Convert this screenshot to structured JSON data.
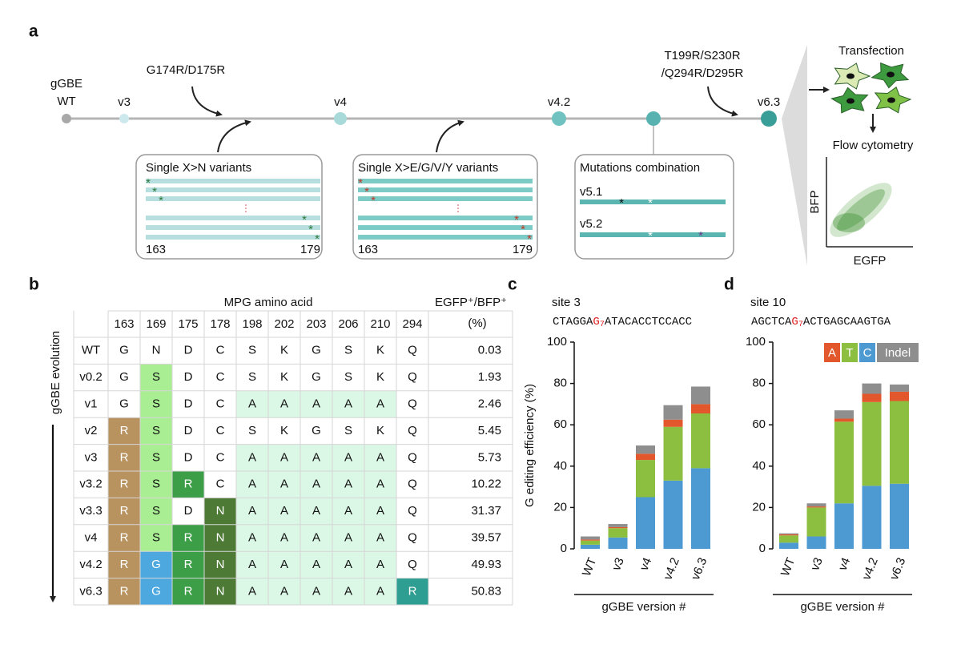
{
  "panel_labels": [
    "a",
    "b",
    "c",
    "d"
  ],
  "panel_a": {
    "origin": [
      "gGBE",
      "WT"
    ],
    "versions": [
      "v3",
      "v4",
      "v4.2",
      "v6.3"
    ],
    "mutations_1": "G174R/D175R",
    "mutations_2": [
      "T199R/S230R",
      "/Q294R/D295R"
    ],
    "box_1": {
      "title": "Single X>N variants",
      "start": "163",
      "end": "179"
    },
    "box_2": {
      "title": "Single X>E/G/V/Y variants",
      "start": "163",
      "end": "179"
    },
    "box_3": {
      "title": "Mutations combination",
      "variants": [
        "v5.1",
        "v5.2"
      ]
    },
    "transfection": "Transfection",
    "flow": "Flow cytometry",
    "flow_y": "BFP",
    "flow_x": "EGFP"
  },
  "table": {
    "group_header": "MPG amino acid",
    "columns": [
      "163",
      "169",
      "175",
      "178",
      "198",
      "202",
      "203",
      "206",
      "210",
      "294"
    ],
    "result_header": [
      "EGFP⁺/BFP⁺",
      "(%)"
    ],
    "row_axis": "gGBE evolution",
    "rows": [
      {
        "name": "WT",
        "residues": [
          "G",
          "N",
          "D",
          "C",
          "S",
          "K",
          "G",
          "S",
          "K",
          "Q"
        ],
        "value": "0.03"
      },
      {
        "name": "v0.2",
        "residues": [
          "G",
          "S",
          "D",
          "C",
          "S",
          "K",
          "G",
          "S",
          "K",
          "Q"
        ],
        "value": "1.93"
      },
      {
        "name": "v1",
        "residues": [
          "G",
          "S",
          "D",
          "C",
          "A",
          "A",
          "A",
          "A",
          "A",
          "Q"
        ],
        "value": "2.46"
      },
      {
        "name": "v2",
        "residues": [
          "R",
          "S",
          "D",
          "C",
          "S",
          "K",
          "G",
          "S",
          "K",
          "Q"
        ],
        "value": "5.45"
      },
      {
        "name": "v3",
        "residues": [
          "R",
          "S",
          "D",
          "C",
          "A",
          "A",
          "A",
          "A",
          "A",
          "Q"
        ],
        "value": "5.73"
      },
      {
        "name": "v3.2",
        "residues": [
          "R",
          "S",
          "R",
          "C",
          "A",
          "A",
          "A",
          "A",
          "A",
          "Q"
        ],
        "value": "10.22"
      },
      {
        "name": "v3.3",
        "residues": [
          "R",
          "S",
          "D",
          "N",
          "A",
          "A",
          "A",
          "A",
          "A",
          "Q"
        ],
        "value": "31.37"
      },
      {
        "name": "v4",
        "residues": [
          "R",
          "S",
          "R",
          "N",
          "A",
          "A",
          "A",
          "A",
          "A",
          "Q"
        ],
        "value": "39.57"
      },
      {
        "name": "v4.2",
        "residues": [
          "R",
          "G",
          "R",
          "N",
          "A",
          "A",
          "A",
          "A",
          "A",
          "Q"
        ],
        "value": "49.93"
      },
      {
        "name": "v6.3",
        "residues": [
          "R",
          "G",
          "R",
          "N",
          "A",
          "A",
          "A",
          "A",
          "A",
          "R"
        ],
        "value": "50.83"
      }
    ],
    "mutation_colors": {
      "163": {
        "R": "#b8925f"
      },
      "169": {
        "S": "#aaee94",
        "G": "#4da8e0"
      },
      "175": {
        "R": "#3d9e48"
      },
      "178": {
        "N": "#4d7a34"
      },
      "198": {
        "A": "#dbf7e6"
      },
      "202": {
        "A": "#dbf7e6"
      },
      "203": {
        "A": "#dbf7e6"
      },
      "206": {
        "A": "#dbf7e6"
      },
      "210": {
        "A": "#dbf7e6"
      },
      "294": {
        "R": "#2f9e92"
      }
    }
  },
  "chart_data": [
    {
      "type": "bar",
      "stacked": true,
      "site": "site 3",
      "sequence": [
        "CTAGGA",
        "G",
        "7",
        "ATACACCTCCACC"
      ],
      "ylabel": "G editing efficiency (%)",
      "xlabel": "gGBE version #",
      "categories": [
        "WT",
        "v3",
        "v4",
        "v4.2",
        "v6.3"
      ],
      "series": [
        {
          "color": "#e2572b",
          "values": [
            0.5,
            0.5,
            3,
            3.5,
            4.5
          ]
        },
        {
          "color": "#8cbf40",
          "values": [
            2,
            4.5,
            18,
            26,
            26.5
          ]
        },
        {
          "color": "#4d9ad2",
          "values": [
            2,
            5.5,
            25,
            33,
            39
          ]
        },
        {
          "color": "#8e8e8e",
          "values": [
            1.5,
            1.5,
            4,
            7,
            8.5
          ]
        }
      ],
      "ylim": [
        0,
        100
      ],
      "yticks": [
        0,
        20,
        40,
        60,
        80,
        100
      ]
    },
    {
      "type": "bar",
      "stacked": true,
      "site": "site 10",
      "sequence": [
        "AGCTCA",
        "G",
        "7",
        "ACTGAGCAAGTGA"
      ],
      "xlabel": "gGBE version #",
      "categories": [
        "WT",
        "v3",
        "v4",
        "v4.2",
        "v6.3"
      ],
      "series": [
        {
          "name": "A",
          "color": "#e2572b",
          "values": [
            0.5,
            0.5,
            1.5,
            4,
            4.5
          ]
        },
        {
          "name": "T",
          "color": "#8cbf40",
          "values": [
            3.5,
            14,
            39.5,
            40.5,
            40
          ]
        },
        {
          "name": "C",
          "color": "#4d9ad2",
          "values": [
            3,
            6,
            22,
            30.5,
            31.5
          ]
        },
        {
          "name": "Indel",
          "color": "#8e8e8e",
          "values": [
            0.5,
            1.5,
            4,
            5,
            3.5
          ]
        }
      ],
      "ylim": [
        0,
        100
      ],
      "yticks": [
        0,
        20,
        40,
        60,
        80,
        100
      ],
      "legend": "upper right"
    }
  ]
}
